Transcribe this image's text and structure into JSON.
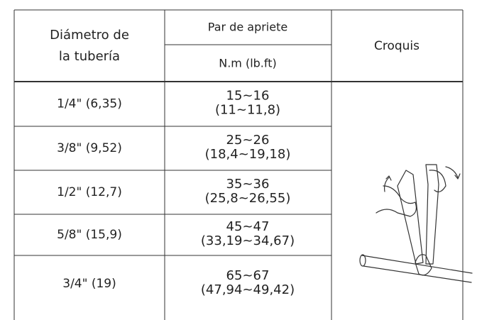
{
  "header": {
    "pipe_diameter": [
      "Diámetro de",
      "la tubería"
    ],
    "torque": "Par de apriete",
    "torque_unit": "N.m (lb.ft)",
    "sketch": "Croquis"
  },
  "table": {
    "rows": [
      {
        "pipe": "1/4\" (6,35)",
        "torque": [
          "15~16",
          "(11~11,8)"
        ]
      },
      {
        "pipe": "3/8\" (9,52)",
        "torque": [
          "25~26",
          "(18,4~19,18)"
        ]
      },
      {
        "pipe": "1/2\" (12,7)",
        "torque": [
          "35~36",
          "(25,8~26,55)"
        ]
      },
      {
        "pipe": "5/8\" (15,9)",
        "torque": [
          "45~47",
          "(33,19~34,67)"
        ]
      },
      {
        "pipe": "3/4\" (19)",
        "torque": [
          "65~67",
          "(47,94~49,42)"
        ]
      }
    ]
  }
}
